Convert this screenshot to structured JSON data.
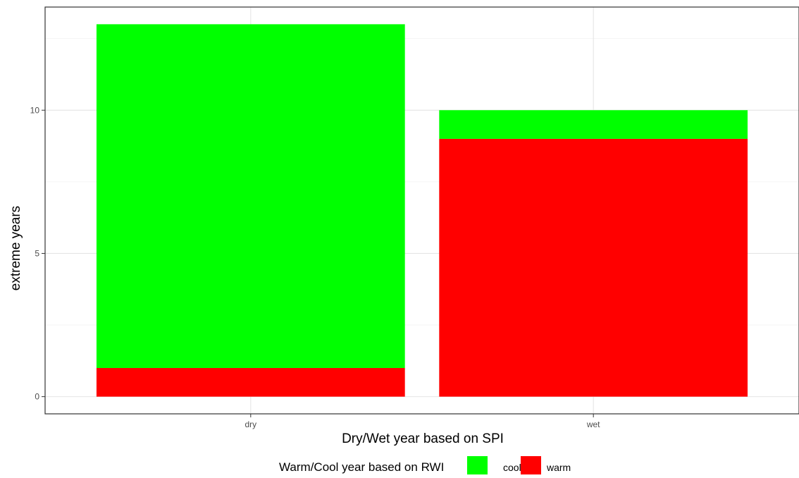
{
  "chart_data": {
    "type": "bar",
    "stacked": true,
    "categories": [
      "dry",
      "wet"
    ],
    "series": [
      {
        "name": "warm",
        "color": "#ff0000",
        "values": [
          1,
          9
        ]
      },
      {
        "name": "cool",
        "color": "#00ff00",
        "values": [
          12,
          1
        ]
      }
    ],
    "xlabel": "Dry/Wet year based on SPI",
    "ylabel": "extreme years",
    "yticks": [
      0,
      5,
      10
    ],
    "ylim": [
      -0.6,
      13.6
    ],
    "grid": true,
    "legend": {
      "title": "Warm/Cool year based on RWI",
      "position": "bottom",
      "order": [
        "cool",
        "warm"
      ]
    }
  }
}
